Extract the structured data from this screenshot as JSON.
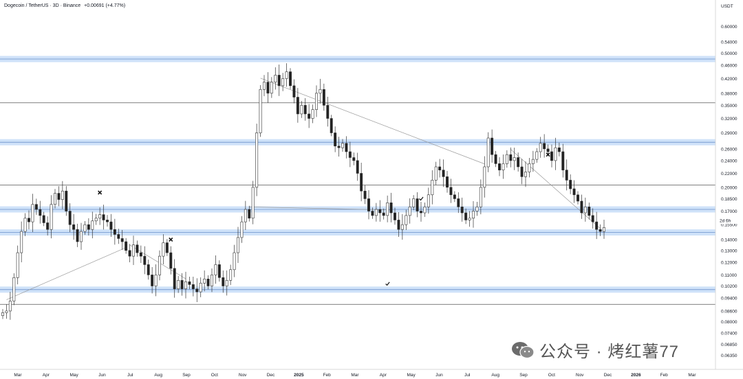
{
  "header": {
    "title": "Dogecoin / TetherUS · 3D · Binance",
    "change": "+0.00691 (+4.77%)"
  },
  "watermark": {
    "text": "公众号 · 烤红薯77",
    "icon": "wechat-icon"
  },
  "colors": {
    "up": "#ffffff",
    "down": "#222222",
    "wick": "#333333",
    "zone": "#bfd8f7",
    "hline": "#555555",
    "trend": "#9a9a9a"
  },
  "chart_data": {
    "type": "candlestick",
    "symbol": "Dogecoin / TetherUS",
    "interval": "3D",
    "exchange": "Binance",
    "y_unit_label": "USDT",
    "y_scale": "log",
    "ylim": [
      0.0605,
      0.66
    ],
    "y_ticks": [
      "0.60000",
      "0.54000",
      "0.50000",
      "0.46000",
      "0.42000",
      "0.38000",
      "0.35000",
      "0.32000",
      "0.29000",
      "0.26000",
      "0.24000",
      "0.22000",
      "0.20000",
      "0.18500",
      "0.17000",
      "0.15500",
      "0.14000",
      "0.13000",
      "0.12000",
      "0.11000",
      "0.10200",
      "0.09400",
      "0.08600",
      "0.08000",
      "0.07400",
      "0.06850",
      "0.06350"
    ],
    "x_ticks": [
      "Mar",
      "Apr",
      "May",
      "Jun",
      "Jul",
      "Aug",
      "Sep",
      "Oct",
      "Nov",
      "Dec",
      "2025",
      "Feb",
      "Mar",
      "Apr",
      "May",
      "Jun",
      "Jul",
      "Aug",
      "Sep",
      "Oct",
      "Nov",
      "Dec",
      "2026",
      "Feb",
      "Mar"
    ],
    "current_price_label": "2d 6h",
    "support_resistance_zones": [
      0.48,
      0.272,
      0.172,
      0.147,
      0.0995
    ],
    "horizontal_lines": [
      0.356,
      0.203,
      0.09
    ],
    "series": [
      {
        "close": [
          0.085,
          0.086,
          0.092,
          0.108,
          0.128,
          0.148,
          0.162,
          0.158,
          0.178,
          0.172,
          0.165,
          0.157,
          0.15,
          0.178,
          0.192,
          0.184,
          0.195,
          0.17,
          0.155,
          0.15,
          0.138,
          0.148,
          0.155,
          0.15,
          0.159,
          0.162,
          0.166,
          0.16,
          0.158,
          0.15,
          0.145,
          0.141,
          0.138,
          0.13,
          0.125,
          0.135,
          0.128,
          0.125,
          0.118,
          0.11,
          0.102,
          0.11,
          0.125,
          0.137,
          0.128,
          0.115,
          0.1,
          0.106,
          0.1,
          0.105,
          0.103,
          0.1,
          0.098,
          0.104,
          0.107,
          0.102,
          0.11,
          0.118,
          0.108,
          0.102,
          0.106,
          0.114,
          0.128,
          0.142,
          0.158,
          0.172,
          0.162,
          0.2,
          0.29,
          0.39,
          0.41,
          0.38,
          0.41,
          0.43,
          0.4,
          0.42,
          0.44,
          0.4,
          0.37,
          0.33,
          0.35,
          0.33,
          0.32,
          0.34,
          0.38,
          0.39,
          0.35,
          0.32,
          0.29,
          0.265,
          0.262,
          0.27,
          0.255,
          0.245,
          0.24,
          0.22,
          0.195,
          0.185,
          0.17,
          0.165,
          0.172,
          0.168,
          0.165,
          0.18,
          0.168,
          0.16,
          0.15,
          0.155,
          0.165,
          0.175,
          0.185,
          0.17,
          0.168,
          0.175,
          0.19,
          0.21,
          0.23,
          0.225,
          0.215,
          0.2,
          0.19,
          0.185,
          0.175,
          0.168,
          0.16,
          0.162,
          0.17,
          0.175,
          0.2,
          0.23,
          0.28,
          0.25,
          0.235,
          0.225,
          0.235,
          0.25,
          0.24,
          0.245,
          0.23,
          0.215,
          0.222,
          0.235,
          0.242,
          0.255,
          0.27,
          0.26,
          0.255,
          0.24,
          0.262,
          0.255,
          0.225,
          0.21,
          0.198,
          0.19,
          0.182,
          0.168,
          0.175,
          0.165,
          0.158,
          0.15,
          0.148,
          0.152
        ]
      }
    ],
    "annotations": [
      {
        "type": "cross",
        "date_index": 26,
        "price": 0.193
      },
      {
        "type": "cross",
        "date_index": 45,
        "price": 0.14
      },
      {
        "type": "check",
        "date_index": 112,
        "price": 0.185
      },
      {
        "type": "check",
        "date_index": 103,
        "price": 0.1035
      },
      {
        "type": "cross",
        "date_index": 146,
        "price": 0.25
      }
    ]
  }
}
